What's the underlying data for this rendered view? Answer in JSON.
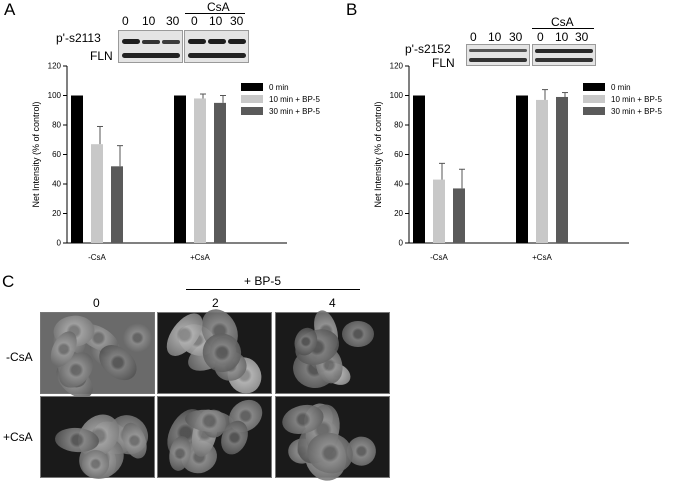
{
  "panel_a": {
    "letter": "A",
    "blot_protein": "p'-s2113",
    "blot_loading": "FLN",
    "lanes_left": [
      "0",
      "10",
      "30"
    ],
    "lanes_right": [
      "0",
      "10",
      "30"
    ],
    "treatment_label": "CsA"
  },
  "panel_b": {
    "letter": "B",
    "blot_protein": "p'-s2152",
    "blot_loading": "FLN",
    "lanes_left": [
      "0",
      "10",
      "30"
    ],
    "lanes_right": [
      "0",
      "10",
      "30"
    ],
    "treatment_label": "CsA"
  },
  "panel_c": {
    "letter": "C",
    "treatment_header": "+ BP-5",
    "columns": [
      "0",
      "2",
      "4"
    ],
    "rows": [
      "-CsA",
      "+CsA"
    ]
  },
  "chart_data": [
    {
      "panel": "A",
      "type": "bar",
      "categories": [
        "-CsA",
        "+CsA"
      ],
      "series": [
        {
          "name": "0 min",
          "values": [
            100,
            100
          ],
          "errors": [
            0,
            0
          ],
          "color": "#000000"
        },
        {
          "name": "10 min + BP-5",
          "values": [
            67,
            98
          ],
          "errors": [
            12,
            3
          ],
          "color": "#c8c8c8"
        },
        {
          "name": "30 min + BP-5",
          "values": [
            52,
            95
          ],
          "errors": [
            14,
            5
          ],
          "color": "#5a5a5a"
        }
      ],
      "ylabel": "Net Intensity (% of control)",
      "ylim": [
        0,
        120
      ],
      "yticks": [
        0,
        20,
        40,
        60,
        80,
        100,
        120
      ],
      "legend": "top-right"
    },
    {
      "panel": "B",
      "type": "bar",
      "categories": [
        "-CsA",
        "+CsA"
      ],
      "series": [
        {
          "name": "0 min",
          "values": [
            100,
            100
          ],
          "errors": [
            0,
            0
          ],
          "color": "#000000"
        },
        {
          "name": "10 min + BP-5",
          "values": [
            43,
            97
          ],
          "errors": [
            11,
            7
          ],
          "color": "#c8c8c8"
        },
        {
          "name": "30 min + BP-5",
          "values": [
            37,
            99
          ],
          "errors": [
            13,
            3
          ],
          "color": "#5a5a5a"
        }
      ],
      "ylabel": "Net Intensity (% of control)",
      "ylim": [
        0,
        120
      ],
      "yticks": [
        0,
        20,
        40,
        60,
        80,
        100,
        120
      ],
      "legend": "top-right"
    }
  ]
}
